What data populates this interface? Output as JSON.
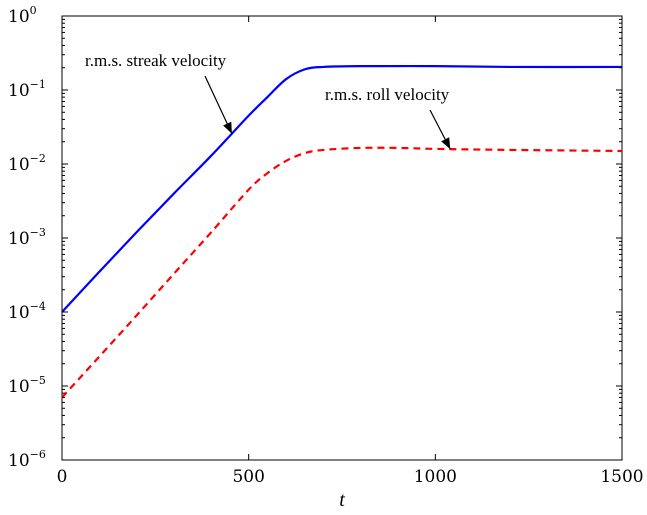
{
  "chart_data": {
    "type": "line",
    "xlabel": "t",
    "ylabel": "",
    "xlim": [
      0,
      1500
    ],
    "ylim_log10": [
      -6,
      0
    ],
    "yscale": "log",
    "grid": false,
    "x_ticks": [
      0,
      500,
      1000,
      1500
    ],
    "x_tick_labels": [
      "0",
      "500",
      "1000",
      "1500"
    ],
    "y_ticks": [
      {
        "base": "10",
        "exp": "-6"
      },
      {
        "base": "10",
        "exp": "-5"
      },
      {
        "base": "10",
        "exp": "-4"
      },
      {
        "base": "10",
        "exp": "-3"
      },
      {
        "base": "10",
        "exp": "-2"
      },
      {
        "base": "10",
        "exp": "-1"
      },
      {
        "base": "10",
        "exp": "0"
      }
    ],
    "series": [
      {
        "name": "r.m.s. streak velocity",
        "color": "#0000ff",
        "style": "solid",
        "x": [
          0,
          100,
          200,
          300,
          400,
          500,
          550,
          600,
          650,
          700,
          800,
          1000,
          1200,
          1500
        ],
        "y": [
          0.0001,
          0.00035,
          0.0012,
          0.004,
          0.013,
          0.045,
          0.08,
          0.14,
          0.19,
          0.205,
          0.21,
          0.21,
          0.205,
          0.205
        ]
      },
      {
        "name": "r.m.s. roll velocity",
        "color": "#ff0000",
        "style": "dashed",
        "x": [
          0,
          100,
          200,
          300,
          400,
          500,
          550,
          600,
          650,
          700,
          800,
          900,
          1000,
          1200,
          1500
        ],
        "y": [
          7e-06,
          2.5e-05,
          9e-05,
          0.00033,
          0.0012,
          0.0045,
          0.0075,
          0.011,
          0.014,
          0.0155,
          0.0165,
          0.0165,
          0.016,
          0.0155,
          0.015
        ]
      }
    ],
    "annotations": [
      {
        "text": "r.m.s. streak velocity",
        "target_series": 0,
        "target_x": 455
      },
      {
        "text": "r.m.s. roll velocity",
        "target_series": 1,
        "target_x": 1040
      }
    ]
  }
}
